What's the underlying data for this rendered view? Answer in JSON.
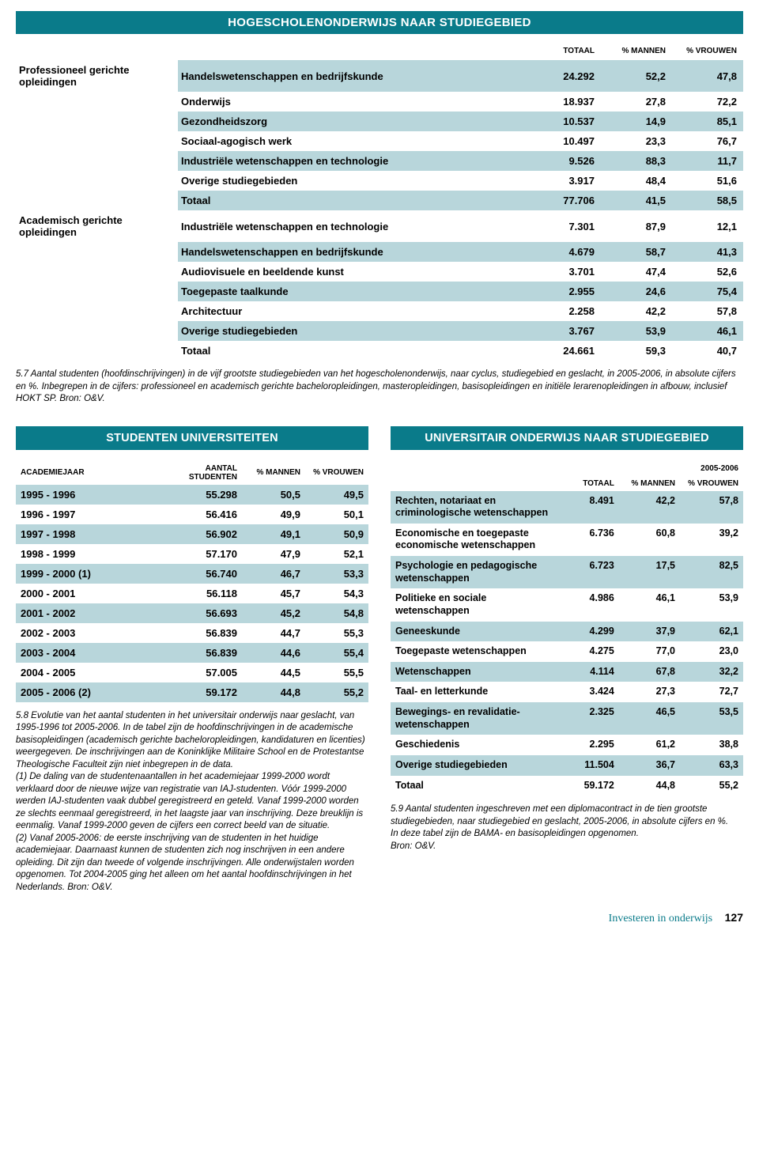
{
  "main_table": {
    "title": "HOGESCHOLENONDERWIJS NAAR STUDIEGEBIED",
    "headers": [
      "",
      "",
      "TOTAAL",
      "% MANNEN",
      "% VROUWEN"
    ],
    "groups": [
      {
        "category": "Professioneel gerichte opleidingen",
        "rows": [
          {
            "label": "Handelswetenschappen en bedrijfskunde",
            "total": "24.292",
            "m": "52,2",
            "v": "47,8"
          },
          {
            "label": "Onderwijs",
            "total": "18.937",
            "m": "27,8",
            "v": "72,2"
          },
          {
            "label": "Gezondheidszorg",
            "total": "10.537",
            "m": "14,9",
            "v": "85,1"
          },
          {
            "label": "Sociaal-agogisch werk",
            "total": "10.497",
            "m": "23,3",
            "v": "76,7"
          },
          {
            "label": "Industriële wetenschappen en technologie",
            "total": "9.526",
            "m": "88,3",
            "v": "11,7"
          },
          {
            "label": "Overige studiegebieden",
            "total": "3.917",
            "m": "48,4",
            "v": "51,6"
          },
          {
            "label": "Totaal",
            "total": "77.706",
            "m": "41,5",
            "v": "58,5"
          }
        ]
      },
      {
        "category": "Academisch gerichte opleidingen",
        "rows": [
          {
            "label": "Industriële wetenschappen en technologie",
            "total": "7.301",
            "m": "87,9",
            "v": "12,1"
          },
          {
            "label": "Handelswetenschappen en bedrijfskunde",
            "total": "4.679",
            "m": "58,7",
            "v": "41,3"
          },
          {
            "label": "Audiovisuele en beeldende kunst",
            "total": "3.701",
            "m": "47,4",
            "v": "52,6"
          },
          {
            "label": "Toegepaste taalkunde",
            "total": "2.955",
            "m": "24,6",
            "v": "75,4"
          },
          {
            "label": "Architectuur",
            "total": "2.258",
            "m": "42,2",
            "v": "57,8"
          },
          {
            "label": "Overige studiegebieden",
            "total": "3.767",
            "m": "53,9",
            "v": "46,1"
          },
          {
            "label": "Totaal",
            "total": "24.661",
            "m": "59,3",
            "v": "40,7"
          }
        ]
      }
    ],
    "caption": "5.7 Aantal studenten (hoofdinschrijvingen) in de vijf grootste studiegebieden van het hogescholenonderwijs, naar cyclus, studiegebied en geslacht, in 2005-2006, in absolute cijfers en %. Inbegrepen in de cijfers: professioneel en academisch gerichte bacheloropleidingen, masteropleidingen, basisopleidingen en initiële lerarenopleidingen in afbouw, inclusief HOKT SP. Bron: O&V."
  },
  "left": {
    "title": "STUDENTEN UNIVERSITEITEN",
    "headers": [
      "ACADEMIEJAAR",
      "AANTAL STUDENTEN",
      "% MANNEN",
      "% VROUWEN"
    ],
    "rows": [
      {
        "y": "1995 - 1996",
        "n": "55.298",
        "m": "50,5",
        "v": "49,5"
      },
      {
        "y": "1996 - 1997",
        "n": "56.416",
        "m": "49,9",
        "v": "50,1"
      },
      {
        "y": "1997 - 1998",
        "n": "56.902",
        "m": "49,1",
        "v": "50,9"
      },
      {
        "y": "1998 - 1999",
        "n": "57.170",
        "m": "47,9",
        "v": "52,1"
      },
      {
        "y": "1999 - 2000 (1)",
        "n": "56.740",
        "m": "46,7",
        "v": "53,3"
      },
      {
        "y": "2000 - 2001",
        "n": "56.118",
        "m": "45,7",
        "v": "54,3"
      },
      {
        "y": "2001 - 2002",
        "n": "56.693",
        "m": "45,2",
        "v": "54,8"
      },
      {
        "y": "2002 - 2003",
        "n": "56.839",
        "m": "44,7",
        "v": "55,3"
      },
      {
        "y": "2003 - 2004",
        "n": "56.839",
        "m": "44,6",
        "v": "55,4"
      },
      {
        "y": "2004 - 2005",
        "n": "57.005",
        "m": "44,5",
        "v": "55,5"
      },
      {
        "y": "2005 - 2006 (2)",
        "n": "59.172",
        "m": "44,8",
        "v": "55,2"
      }
    ],
    "caption": "5.8 Evolutie van het aantal studenten in het universitair onderwijs naar geslacht, van 1995-1996 tot 2005-2006. In de tabel zijn de hoofdinschrijvingen in de academische basisopleidingen (academisch gerichte bacheloropleidingen, kandidaturen en licenties) weergegeven. De inschrijvingen aan de Koninklijke Militaire School en de Protestantse Theologische Faculteit zijn niet inbegrepen in de data.\n(1) De daling van de studentenaantallen in het academiejaar 1999-2000 wordt verklaard door de nieuwe wijze van registratie van IAJ-studenten. Vóór 1999-2000 werden IAJ-studenten vaak dubbel geregistreerd en geteld. Vanaf 1999-2000 worden ze slechts eenmaal geregistreerd, in het laagste jaar van inschrijving. Deze breuklijn is eenmalig. Vanaf 1999-2000 geven de cijfers een correct beeld van de situatie.\n(2) Vanaf 2005-2006: de eerste inschrijving van de studenten in het huidige academiejaar. Daarnaast kunnen de studenten zich nog inschrijven in een andere opleiding. Dit zijn dan tweede of volgende inschrijvingen. Alle onderwijstalen worden opgenomen. Tot 2004-2005 ging het alleen om het aantal hoofdinschrijvingen in het Nederlands. Bron: O&V."
  },
  "right": {
    "title": "UNIVERSITAIR ONDERWIJS NAAR STUDIEGEBIED",
    "year": "2005-2006",
    "headers": [
      "",
      "TOTAAL",
      "% MANNEN",
      "% VROUWEN"
    ],
    "rows": [
      {
        "lbl": "Rechten, notariaat en criminologische wetenschappen",
        "t": "8.491",
        "m": "42,2",
        "v": "57,8"
      },
      {
        "lbl": "Economische en toegepaste economische wetenschappen",
        "t": "6.736",
        "m": "60,8",
        "v": "39,2"
      },
      {
        "lbl": "Psychologie en pedagogische wetenschappen",
        "t": "6.723",
        "m": "17,5",
        "v": "82,5"
      },
      {
        "lbl": "Politieke en sociale wetenschappen",
        "t": "4.986",
        "m": "46,1",
        "v": "53,9"
      },
      {
        "lbl": "Geneeskunde",
        "t": "4.299",
        "m": "37,9",
        "v": "62,1"
      },
      {
        "lbl": "Toegepaste wetenschappen",
        "t": "4.275",
        "m": "77,0",
        "v": "23,0"
      },
      {
        "lbl": "Wetenschappen",
        "t": "4.114",
        "m": "67,8",
        "v": "32,2"
      },
      {
        "lbl": "Taal- en letterkunde",
        "t": "3.424",
        "m": "27,3",
        "v": "72,7"
      },
      {
        "lbl": "Bewegings- en revalidatie-wetenschappen",
        "t": "2.325",
        "m": "46,5",
        "v": "53,5"
      },
      {
        "lbl": "Geschiedenis",
        "t": "2.295",
        "m": "61,2",
        "v": "38,8"
      },
      {
        "lbl": "Overige studiegebieden",
        "t": "11.504",
        "m": "36,7",
        "v": "63,3"
      },
      {
        "lbl": "Totaal",
        "t": "59.172",
        "m": "44,8",
        "v": "55,2"
      }
    ],
    "caption": "5.9 Aantal studenten ingeschreven met een diplomacontract in de tien grootste studiegebieden, naar studiegebied en geslacht, 2005-2006, in absolute cijfers en %.\nIn deze tabel zijn de BAMA- en basisopleidingen opgenomen.\nBron: O&V."
  },
  "footer": {
    "title": "Investeren in onderwijs",
    "page": "127"
  },
  "colors": {
    "teal": "#0a7b8a",
    "stripe": "#b8d6db"
  }
}
